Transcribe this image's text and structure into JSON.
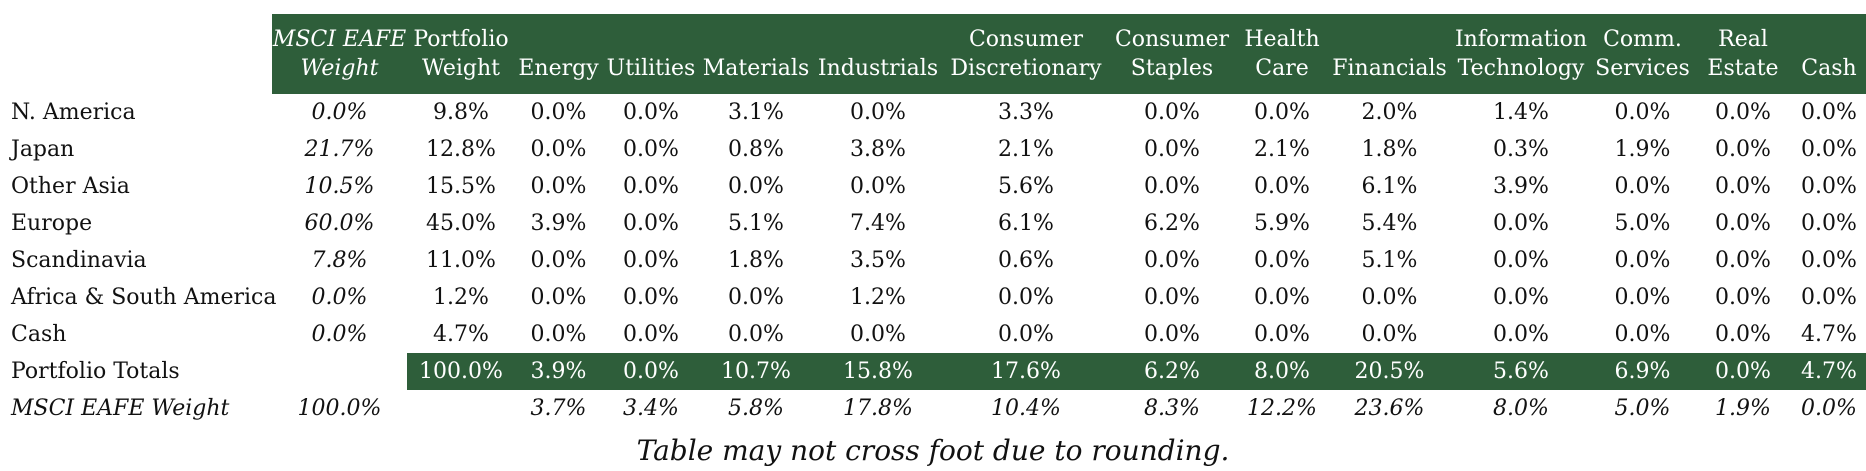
{
  "table": {
    "columns": [
      {
        "key": "label",
        "lines": [
          "",
          ""
        ]
      },
      {
        "key": "msci_weight",
        "lines": [
          "MSCI EAFE",
          "Weight"
        ]
      },
      {
        "key": "portfolio_weight",
        "lines": [
          "Portfolio",
          "Weight"
        ]
      },
      {
        "key": "energy",
        "lines": [
          "",
          "Energy"
        ]
      },
      {
        "key": "utilities",
        "lines": [
          "",
          "Utilities"
        ]
      },
      {
        "key": "materials",
        "lines": [
          "",
          "Materials"
        ]
      },
      {
        "key": "industrials",
        "lines": [
          "",
          "Industrials"
        ]
      },
      {
        "key": "consumer_discretionary",
        "lines": [
          "Consumer",
          "Discretionary"
        ]
      },
      {
        "key": "consumer_staples",
        "lines": [
          "Consumer",
          "Staples"
        ]
      },
      {
        "key": "health_care",
        "lines": [
          "Health",
          "Care"
        ]
      },
      {
        "key": "financials",
        "lines": [
          "",
          "Financials"
        ]
      },
      {
        "key": "information_technology",
        "lines": [
          "Information",
          "Technology"
        ]
      },
      {
        "key": "comm_services",
        "lines": [
          "Comm.",
          "Services"
        ]
      },
      {
        "key": "real_estate",
        "lines": [
          "Real",
          "Estate"
        ]
      },
      {
        "key": "cash",
        "lines": [
          "",
          "Cash"
        ]
      }
    ],
    "rows": [
      {
        "label": "N. America",
        "cells": [
          "0.0%",
          "9.8%",
          "0.0%",
          "0.0%",
          "3.1%",
          "0.0%",
          "3.3%",
          "0.0%",
          "0.0%",
          "2.0%",
          "1.4%",
          "0.0%",
          "0.0%",
          "0.0%"
        ]
      },
      {
        "label": "Japan",
        "cells": [
          "21.7%",
          "12.8%",
          "0.0%",
          "0.0%",
          "0.8%",
          "3.8%",
          "2.1%",
          "0.0%",
          "2.1%",
          "1.8%",
          "0.3%",
          "1.9%",
          "0.0%",
          "0.0%"
        ]
      },
      {
        "label": "Other Asia",
        "cells": [
          "10.5%",
          "15.5%",
          "0.0%",
          "0.0%",
          "0.0%",
          "0.0%",
          "5.6%",
          "0.0%",
          "0.0%",
          "6.1%",
          "3.9%",
          "0.0%",
          "0.0%",
          "0.0%"
        ]
      },
      {
        "label": "Europe",
        "cells": [
          "60.0%",
          "45.0%",
          "3.9%",
          "0.0%",
          "5.1%",
          "7.4%",
          "6.1%",
          "6.2%",
          "5.9%",
          "5.4%",
          "0.0%",
          "5.0%",
          "0.0%",
          "0.0%"
        ]
      },
      {
        "label": "Scandinavia",
        "cells": [
          "7.8%",
          "11.0%",
          "0.0%",
          "0.0%",
          "1.8%",
          "3.5%",
          "0.6%",
          "0.0%",
          "0.0%",
          "5.1%",
          "0.0%",
          "0.0%",
          "0.0%",
          "0.0%"
        ]
      },
      {
        "label": "Africa & South America",
        "cells": [
          "0.0%",
          "1.2%",
          "0.0%",
          "0.0%",
          "0.0%",
          "1.2%",
          "0.0%",
          "0.0%",
          "0.0%",
          "0.0%",
          "0.0%",
          "0.0%",
          "0.0%",
          "0.0%"
        ]
      },
      {
        "label": "Cash",
        "cells": [
          "0.0%",
          "4.7%",
          "0.0%",
          "0.0%",
          "0.0%",
          "0.0%",
          "0.0%",
          "0.0%",
          "0.0%",
          "0.0%",
          "0.0%",
          "0.0%",
          "0.0%",
          "4.7%"
        ]
      }
    ],
    "totals": {
      "label": "Portfolio Totals",
      "cells": [
        "",
        "100.0%",
        "3.9%",
        "0.0%",
        "10.7%",
        "15.8%",
        "17.6%",
        "6.2%",
        "8.0%",
        "20.5%",
        "5.6%",
        "6.9%",
        "0.0%",
        "4.7%"
      ]
    },
    "benchmark": {
      "label": "MSCI EAFE Weight",
      "cells": [
        "100.0%",
        "",
        "3.7%",
        "3.4%",
        "5.8%",
        "17.8%",
        "10.4%",
        "8.3%",
        "12.2%",
        "23.6%",
        "8.0%",
        "5.0%",
        "1.9%",
        "0.0%"
      ]
    }
  },
  "footnote": "Table may not cross foot due to rounding.",
  "colors": {
    "header_green": "#2e5e3a",
    "header_text": "#ffffff"
  }
}
